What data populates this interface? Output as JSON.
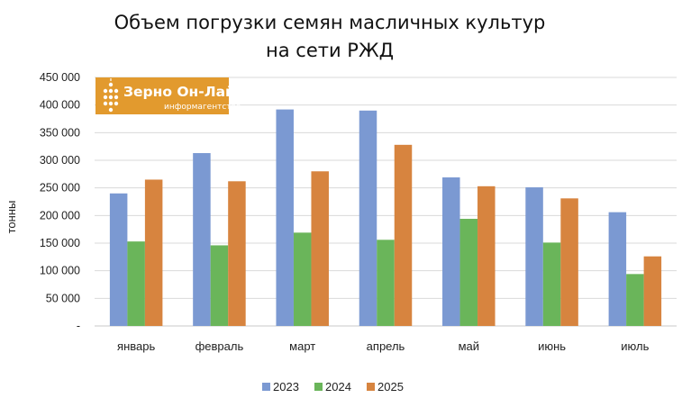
{
  "logo": {
    "main": "Зерно Он-Лайн",
    "sub": "информагентство",
    "color": "#e29a2e"
  },
  "chart_data": {
    "type": "bar",
    "title_line1": "Объем погрузки семян масличных культур",
    "title_line2": "на сети РЖД",
    "ylabel": "тонны",
    "ylim": [
      0,
      450000
    ],
    "yticks": [
      0,
      50000,
      100000,
      150000,
      200000,
      250000,
      300000,
      350000,
      400000,
      450000
    ],
    "ytick_labels": [
      "-",
      "50 000",
      "100 000",
      "150 000",
      "200 000",
      "250 000",
      "300 000",
      "350 000",
      "400 000",
      "450 000"
    ],
    "categories": [
      "январь",
      "февраль",
      "март",
      "апрель",
      "май",
      "июнь",
      "июль"
    ],
    "series": [
      {
        "name": "2023",
        "color": "#7b99d2",
        "values": [
          240000,
          313000,
          392000,
          390000,
          269000,
          251000,
          206000
        ]
      },
      {
        "name": "2024",
        "color": "#6ab55a",
        "values": [
          153000,
          146000,
          169000,
          156000,
          194000,
          151000,
          94000
        ]
      },
      {
        "name": "2025",
        "color": "#d7843f",
        "values": [
          265000,
          262000,
          280000,
          328000,
          253000,
          231000,
          126000
        ]
      }
    ],
    "grid": true,
    "legend_position": "bottom"
  }
}
